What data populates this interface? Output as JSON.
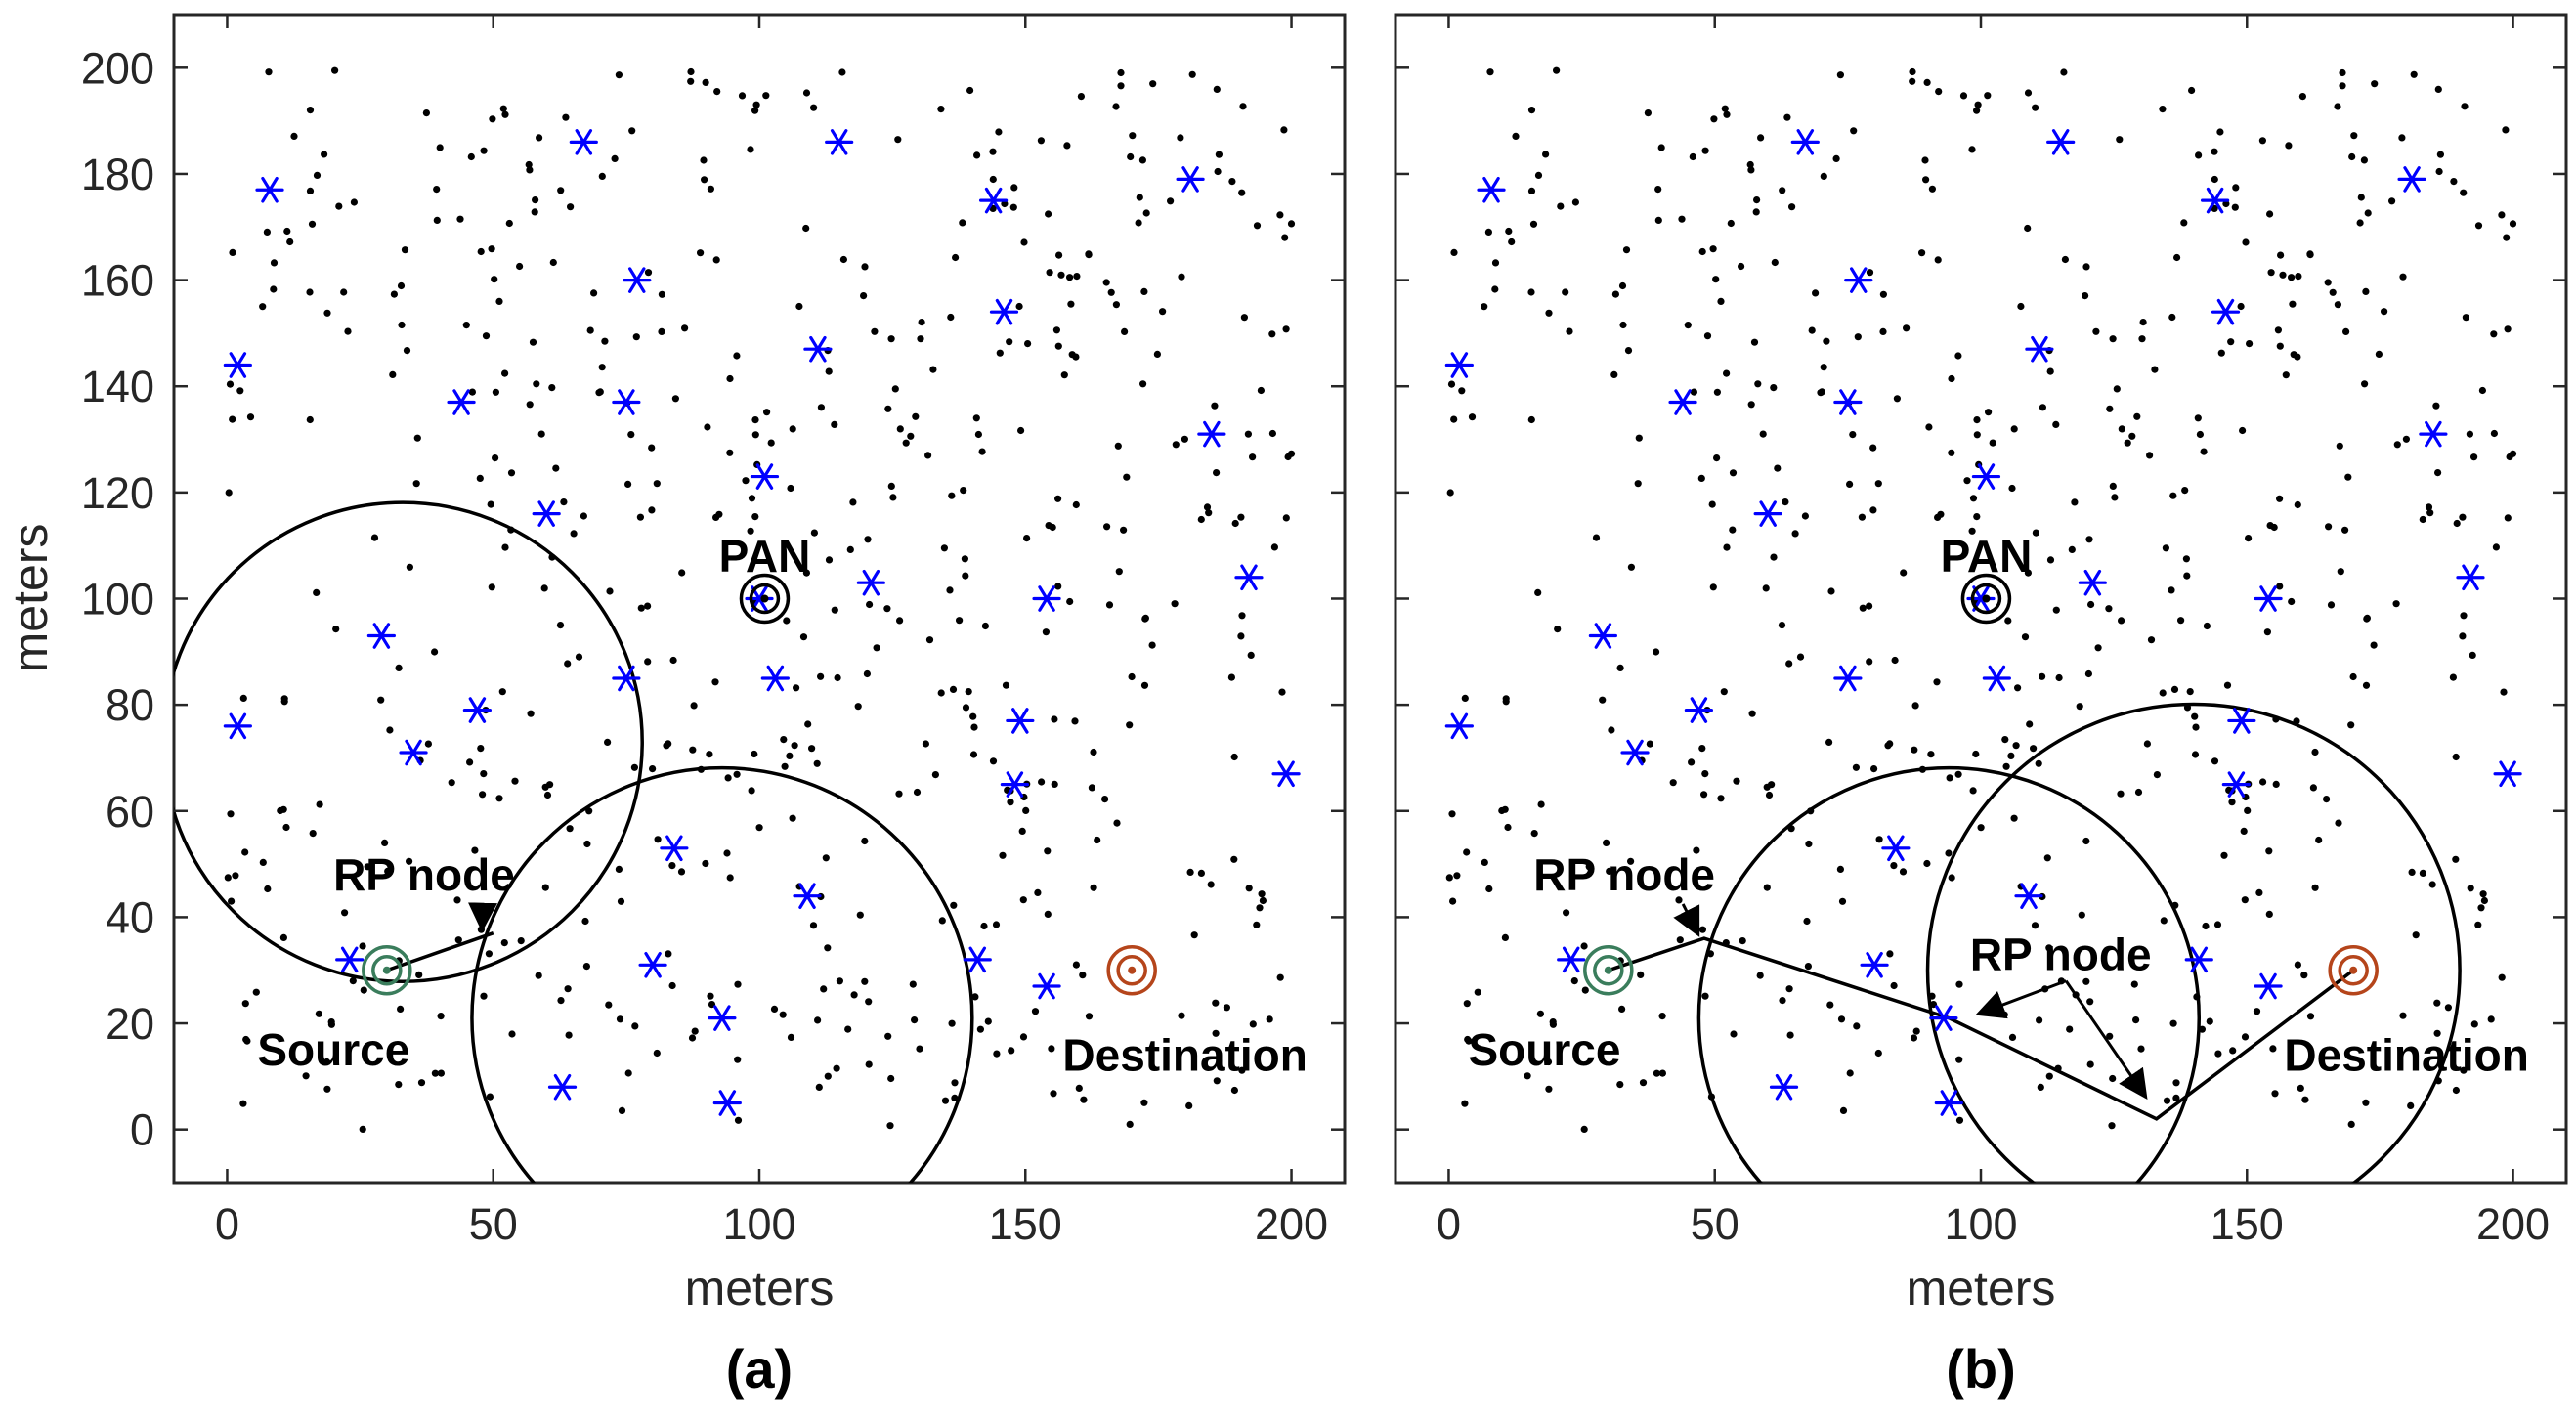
{
  "chart_data": [
    {
      "panel": "a",
      "type": "scatter",
      "caption": "(a)",
      "xlabel": "meters",
      "ylabel": "meters",
      "xlim": [
        -10,
        210
      ],
      "ylim": [
        -10,
        210
      ],
      "xticks": [
        "0",
        "50",
        "100",
        "150",
        "200"
      ],
      "yticks": [
        "0",
        "20",
        "40",
        "60",
        "80",
        "100",
        "120",
        "140",
        "160",
        "180",
        "200"
      ],
      "legend": "none",
      "anchor_color": "#0000ff",
      "sensor_color": "#000000",
      "anchors": [
        [
          8,
          177
        ],
        [
          67,
          186
        ],
        [
          115,
          186
        ],
        [
          144,
          175
        ],
        [
          181,
          179
        ],
        [
          2,
          144
        ],
        [
          77,
          160
        ],
        [
          146,
          154
        ],
        [
          111,
          147
        ],
        [
          44,
          137
        ],
        [
          75,
          137
        ],
        [
          185,
          131
        ],
        [
          101,
          123
        ],
        [
          60,
          116
        ],
        [
          121,
          103
        ],
        [
          154,
          100
        ],
        [
          192,
          104
        ],
        [
          29,
          93
        ],
        [
          75,
          85
        ],
        [
          103,
          85
        ],
        [
          47,
          79
        ],
        [
          2,
          76
        ],
        [
          149,
          77
        ],
        [
          35,
          71
        ],
        [
          148,
          65
        ],
        [
          199,
          67
        ],
        [
          84,
          53
        ],
        [
          109,
          44
        ],
        [
          23,
          32
        ],
        [
          80,
          31
        ],
        [
          141,
          32
        ],
        [
          154,
          27
        ],
        [
          93,
          21
        ],
        [
          63,
          8
        ],
        [
          94,
          5
        ],
        [
          100,
          100
        ]
      ],
      "special_nodes": [
        {
          "name": "PAN",
          "x": 101,
          "y": 100,
          "color": "#000000"
        },
        {
          "name": "Source",
          "x": 30,
          "y": 30,
          "color": "#3a7d5c"
        },
        {
          "name": "Destination",
          "x": 170,
          "y": 30,
          "color": "#b5451b"
        }
      ],
      "circles": [
        {
          "cx": 33,
          "cy": 73,
          "r": 45
        },
        {
          "cx": 93,
          "cy": 21,
          "r": 47
        }
      ],
      "path": [
        [
          30,
          30
        ],
        [
          50,
          37
        ]
      ],
      "annotations": [
        {
          "text": "PAN",
          "x": 101,
          "y": 108
        },
        {
          "text": "RP node",
          "x": 37,
          "y": 48,
          "arrow_to": [
            49,
            37
          ]
        },
        {
          "text": "Source",
          "x": 20,
          "y": 15
        },
        {
          "text": "Destination",
          "x": 180,
          "y": 14
        }
      ]
    },
    {
      "panel": "b",
      "type": "scatter",
      "caption": "(b)",
      "xlabel": "meters",
      "ylabel": "",
      "xlim": [
        -10,
        210
      ],
      "ylim": [
        -10,
        210
      ],
      "xticks": [
        "0",
        "50",
        "100",
        "150",
        "200"
      ],
      "yticks": [],
      "legend": "none",
      "anchor_color": "#0000ff",
      "sensor_color": "#000000",
      "anchors": [
        [
          8,
          177
        ],
        [
          67,
          186
        ],
        [
          115,
          186
        ],
        [
          144,
          175
        ],
        [
          181,
          179
        ],
        [
          2,
          144
        ],
        [
          77,
          160
        ],
        [
          146,
          154
        ],
        [
          111,
          147
        ],
        [
          44,
          137
        ],
        [
          75,
          137
        ],
        [
          185,
          131
        ],
        [
          101,
          123
        ],
        [
          60,
          116
        ],
        [
          121,
          103
        ],
        [
          154,
          100
        ],
        [
          192,
          104
        ],
        [
          29,
          93
        ],
        [
          75,
          85
        ],
        [
          103,
          85
        ],
        [
          47,
          79
        ],
        [
          2,
          76
        ],
        [
          149,
          77
        ],
        [
          35,
          71
        ],
        [
          148,
          65
        ],
        [
          199,
          67
        ],
        [
          84,
          53
        ],
        [
          109,
          44
        ],
        [
          23,
          32
        ],
        [
          80,
          31
        ],
        [
          141,
          32
        ],
        [
          154,
          27
        ],
        [
          93,
          21
        ],
        [
          63,
          8
        ],
        [
          94,
          5
        ],
        [
          100,
          100
        ]
      ],
      "special_nodes": [
        {
          "name": "PAN",
          "x": 101,
          "y": 100,
          "color": "#000000"
        },
        {
          "name": "Source",
          "x": 30,
          "y": 30,
          "color": "#3a7d5c"
        },
        {
          "name": "Destination",
          "x": 170,
          "y": 30,
          "color": "#b5451b"
        }
      ],
      "circles": [
        {
          "cx": 94,
          "cy": 21,
          "r": 47
        },
        {
          "cx": 140,
          "cy": 30,
          "r": 50
        }
      ],
      "path": [
        [
          30,
          30
        ],
        [
          48,
          36
        ],
        [
          94,
          21
        ],
        [
          133,
          2
        ],
        [
          170,
          30
        ]
      ],
      "annotations": [
        {
          "text": "PAN",
          "x": 101,
          "y": 108
        },
        {
          "text": "RP node",
          "x": 33,
          "y": 48,
          "arrow_to": [
            48,
            36
          ]
        },
        {
          "text": "RP node",
          "x": 115,
          "y": 33,
          "arrow_to": [
            98,
            21
          ],
          "arrow_to_2": [
            131,
            5
          ],
          "elbow": [
            116,
            28
          ]
        },
        {
          "text": "Source",
          "x": 18,
          "y": 15
        },
        {
          "text": "Destination",
          "x": 180,
          "y": 14
        }
      ]
    }
  ]
}
